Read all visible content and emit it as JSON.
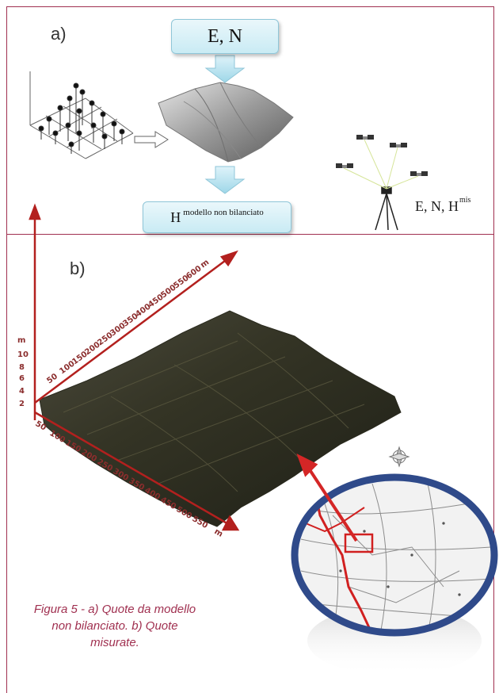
{
  "panel_a": {
    "label": "a)",
    "top_box": "E, N",
    "bottom_box_main": "H",
    "bottom_box_sup": "modello non bilanciato",
    "gps_label_main": "E, N, H",
    "gps_label_sup": "mis"
  },
  "panel_b": {
    "label": "b)",
    "vertical_axis": {
      "unit": "m",
      "ticks": [
        "10",
        "8",
        "6",
        "4",
        "2"
      ]
    },
    "back_axis": {
      "unit": "m",
      "ticks": [
        "50",
        "100",
        "150",
        "200",
        "250",
        "300",
        "350",
        "400",
        "450",
        "500",
        "550",
        "600"
      ]
    },
    "front_axis": {
      "unit": "m",
      "ticks": [
        "50",
        "100",
        "150",
        "200",
        "250",
        "300",
        "350",
        "400",
        "450",
        "500",
        "550"
      ]
    }
  },
  "caption": "Figura 5 - a) Quote da modello non bilanciato. b) Quote misurate.",
  "colors": {
    "frame": "#a03050",
    "caption": "#a03050",
    "axis": "#b3201e",
    "box": "#c9ebf4"
  }
}
